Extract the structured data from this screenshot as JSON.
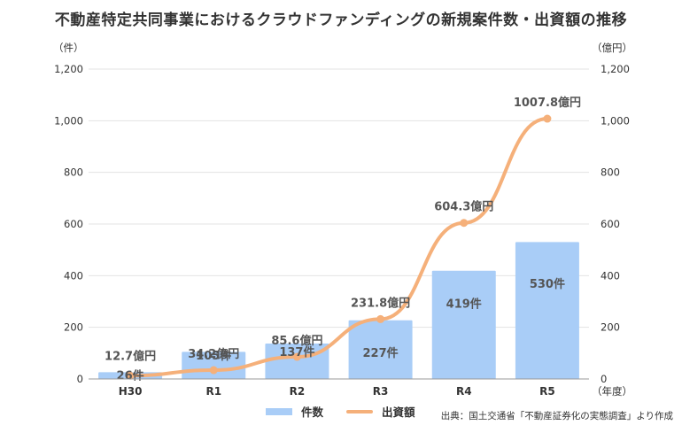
{
  "title": "不動産特定共同事業におけるクラウドファンディングの新規案件数・出資額の推移",
  "source": "出典：国土交通省「不動産証券化の実態調査」より作成",
  "colors": {
    "bar": "#a9cdf7",
    "line": "#f5b07a",
    "grid": "#e3e3e3",
    "axis": "#999999"
  },
  "chart_data": {
    "type": "bar+line",
    "categories": [
      "H30",
      "R1",
      "R2",
      "R3",
      "R4",
      "R5"
    ],
    "left_axis": {
      "unit": "（件）",
      "ticks": [
        "0",
        "200",
        "400",
        "600",
        "800",
        "1,000",
        "1,200"
      ],
      "ylim": [
        0,
        1200
      ]
    },
    "right_axis": {
      "unit": "（億円）",
      "ticks": [
        "0",
        "200",
        "400",
        "600",
        "800",
        "1,000",
        "1,200"
      ],
      "ylim": [
        0,
        1200
      ]
    },
    "x_unit": "（年度）",
    "series": [
      {
        "name": "件数",
        "type": "bar",
        "axis": "left",
        "values": [
          26,
          105,
          137,
          227,
          419,
          530
        ],
        "labels": [
          "26件",
          "105件",
          "137件",
          "227件",
          "419件",
          "530件"
        ]
      },
      {
        "name": "出資額",
        "type": "line",
        "axis": "right",
        "values": [
          12.7,
          34.2,
          85.6,
          231.8,
          604.3,
          1007.8
        ],
        "labels": [
          "12.7億円",
          "34.2億円",
          "85.6億円",
          "231.8億円",
          "604.3億円",
          "1007.8億円"
        ]
      }
    ],
    "grid": true,
    "legend": "bottom"
  }
}
